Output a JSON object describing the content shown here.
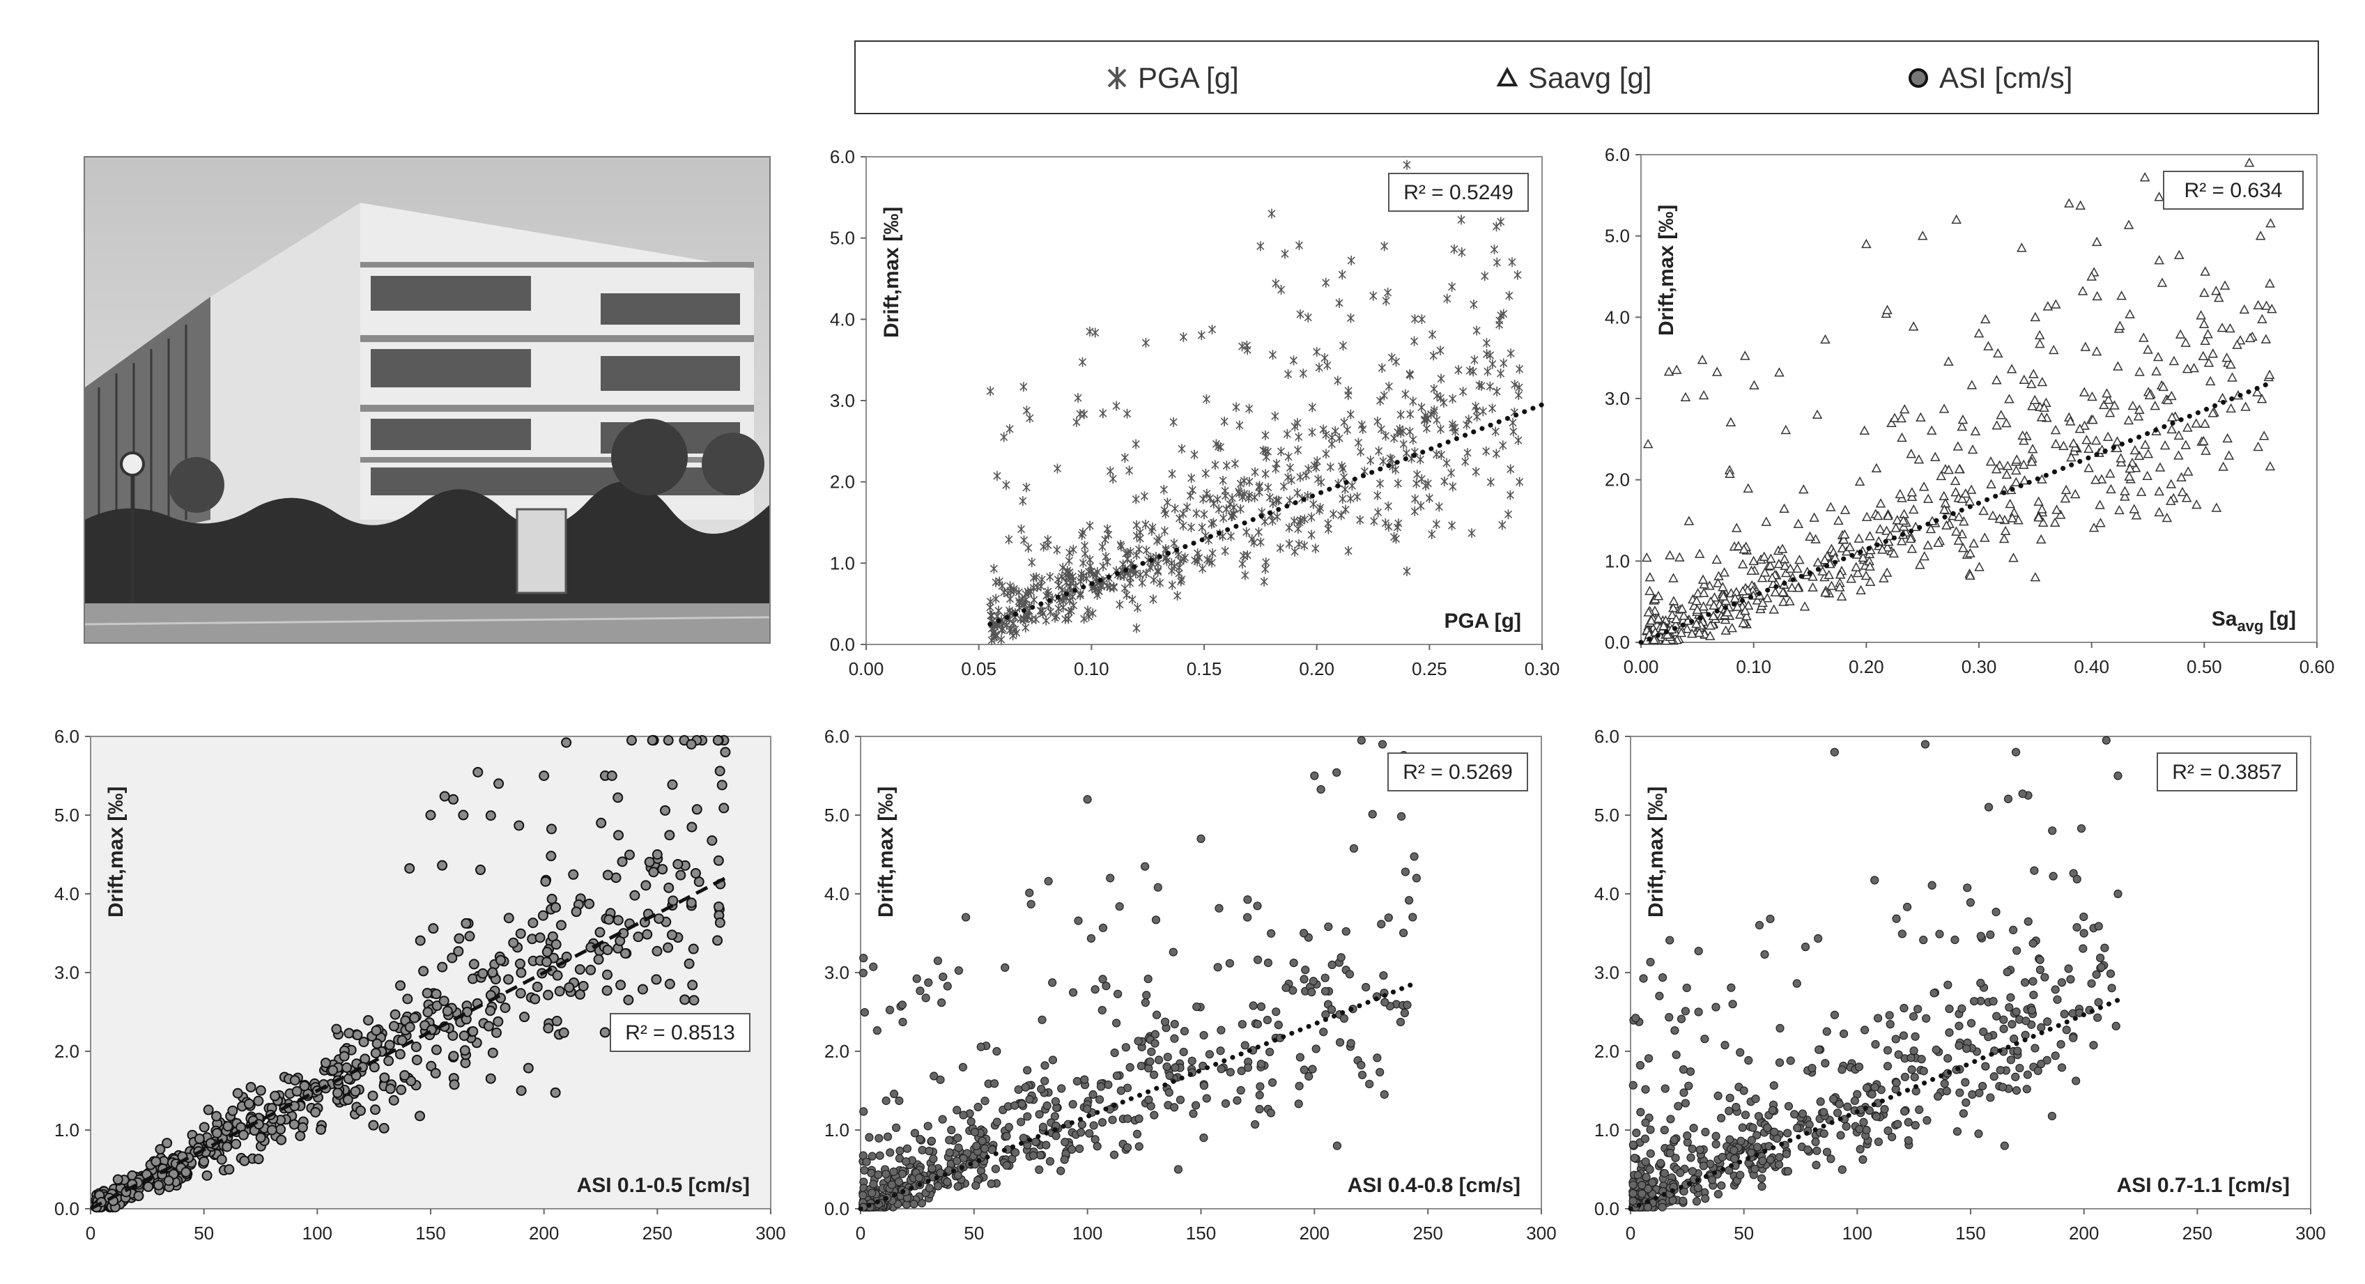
{
  "legend": {
    "items": [
      {
        "symbol": "star",
        "label": "PGA [g]"
      },
      {
        "symbol": "triangle",
        "label": "Saavg [g]"
      },
      {
        "symbol": "circle",
        "label": "ASI [cm/s]"
      }
    ]
  },
  "photo": {
    "subject": "building-photo"
  },
  "chart_data": [
    {
      "id": "pga",
      "type": "scatter",
      "marker": "star",
      "title": "",
      "ylabel": "Drift,max [‰]",
      "xlabel_in_plot": "PGA [g]",
      "xlim": [
        0,
        0.3
      ],
      "ylim": [
        0,
        6
      ],
      "xticks": [
        0,
        0.05,
        0.1,
        0.15,
        0.2,
        0.25,
        0.3
      ],
      "xtick_labels": [
        "0.00",
        "0.05",
        "0.10",
        "0.15",
        "0.20",
        "0.25",
        "0.30"
      ],
      "yticks": [
        0,
        1,
        2,
        3,
        4,
        5,
        6
      ],
      "ytick_labels": [
        "0.0",
        "1.0",
        "2.0",
        "3.0",
        "4.0",
        "5.0",
        "6.0"
      ],
      "r2_label": "R² = 0.5249",
      "r2_pos": "top-right",
      "trend": {
        "style": "dotted",
        "x": [
          0.055,
          0.3
        ],
        "y": [
          0.25,
          2.95
        ]
      },
      "background": "#ffffff",
      "n_points": 650,
      "seed": 11,
      "x_range": [
        0.055,
        0.29
      ],
      "points_sample": [
        [
          0.06,
          0.3
        ],
        [
          0.07,
          0.5
        ],
        [
          0.08,
          0.6
        ],
        [
          0.09,
          0.4
        ],
        [
          0.1,
          0.9
        ],
        [
          0.11,
          0.7
        ],
        [
          0.12,
          1.1
        ],
        [
          0.13,
          1.3
        ],
        [
          0.14,
          0.8
        ],
        [
          0.15,
          1.6
        ],
        [
          0.16,
          2.2
        ],
        [
          0.17,
          2.9
        ],
        [
          0.18,
          5.3
        ],
        [
          0.175,
          4.9
        ],
        [
          0.2,
          3.6
        ],
        [
          0.21,
          4.2
        ],
        [
          0.22,
          2.7
        ],
        [
          0.23,
          4.9
        ],
        [
          0.24,
          5.9
        ],
        [
          0.25,
          1.8
        ],
        [
          0.26,
          4.4
        ],
        [
          0.27,
          3.5
        ],
        [
          0.28,
          4.7
        ],
        [
          0.29,
          2.0
        ],
        [
          0.285,
          1.6
        ],
        [
          0.24,
          0.9
        ],
        [
          0.12,
          0.2
        ]
      ]
    },
    {
      "id": "saavg",
      "type": "scatter",
      "marker": "triangle",
      "title": "",
      "ylabel": "Drift,max [‰]",
      "xlabel_in_plot": "Sa",
      "xlabel_sub": "avg",
      "xlabel_unit": "[g]",
      "xlim": [
        0,
        0.6
      ],
      "ylim": [
        0,
        6
      ],
      "xticks": [
        0,
        0.1,
        0.2,
        0.3,
        0.4,
        0.5,
        0.6
      ],
      "xtick_labels": [
        "0.00",
        "0.10",
        "0.20",
        "0.30",
        "0.40",
        "0.50",
        "0.60"
      ],
      "yticks": [
        0,
        1,
        2,
        3,
        4,
        5,
        6
      ],
      "ytick_labels": [
        "0.0",
        "1.0",
        "2.0",
        "3.0",
        "4.0",
        "5.0",
        "6.0"
      ],
      "r2_label": "R² = 0.634",
      "r2_pos": "top-right",
      "trend": {
        "style": "dotted",
        "x": [
          0.0,
          0.56
        ],
        "y": [
          0.0,
          3.2
        ]
      },
      "background": "#ffffff",
      "n_points": 650,
      "seed": 23,
      "x_range": [
        0.005,
        0.56
      ],
      "points_sample": [
        [
          0.02,
          0.2
        ],
        [
          0.05,
          0.4
        ],
        [
          0.1,
          1.0
        ],
        [
          0.15,
          1.3
        ],
        [
          0.2,
          4.9
        ],
        [
          0.25,
          5.0
        ],
        [
          0.28,
          5.2
        ],
        [
          0.3,
          3.8
        ],
        [
          0.35,
          4.0
        ],
        [
          0.38,
          5.4
        ],
        [
          0.4,
          4.5
        ],
        [
          0.45,
          3.6
        ],
        [
          0.46,
          4.7
        ],
        [
          0.5,
          4.3
        ],
        [
          0.52,
          3.5
        ],
        [
          0.55,
          5.0
        ],
        [
          0.56,
          4.1
        ],
        [
          0.54,
          5.9
        ],
        [
          0.46,
          1.6
        ],
        [
          0.35,
          0.8
        ]
      ]
    },
    {
      "id": "asi-01-05",
      "type": "scatter",
      "marker": "circle",
      "title": "",
      "ylabel": "Drift,max [‰]",
      "xlabel_in_plot": "ASI 0.1-0.5  [cm/s]",
      "xlim": [
        0,
        300
      ],
      "ylim": [
        0,
        6
      ],
      "xticks": [
        0,
        50,
        100,
        150,
        200,
        250,
        300
      ],
      "xtick_labels": [
        "0",
        "50",
        "100",
        "150",
        "200",
        "250",
        "300"
      ],
      "yticks": [
        0,
        1,
        2,
        3,
        4,
        5,
        6
      ],
      "ytick_labels": [
        "0.0",
        "1.0",
        "2.0",
        "3.0",
        "4.0",
        "5.0",
        "6.0"
      ],
      "r2_label": "R² = 0.8513",
      "r2_pos": "mid-right",
      "trend": {
        "style": "dashed",
        "x": [
          0,
          280
        ],
        "y": [
          0.0,
          4.2
        ]
      },
      "background": "#f0f0f0",
      "n_points": 650,
      "seed": 37,
      "x_range": [
        2,
        280
      ],
      "points_sample": [
        [
          10,
          0.1
        ],
        [
          30,
          0.3
        ],
        [
          50,
          0.6
        ],
        [
          80,
          1.0
        ],
        [
          100,
          1.5
        ],
        [
          120,
          1.8
        ],
        [
          150,
          5.0
        ],
        [
          160,
          5.2
        ],
        [
          180,
          5.4
        ],
        [
          200,
          5.5
        ],
        [
          230,
          5.5
        ],
        [
          265,
          5.9
        ],
        [
          280,
          5.8
        ],
        [
          250,
          4.5
        ],
        [
          210,
          3.2
        ],
        [
          190,
          1.5
        ]
      ]
    },
    {
      "id": "asi-04-08",
      "type": "scatter",
      "marker": "dot",
      "title": "",
      "ylabel": "Drift,max [‰]",
      "xlabel_in_plot": "ASI 0.4-0.8  [cm/s]",
      "xlim": [
        0,
        300
      ],
      "ylim": [
        0,
        6
      ],
      "xticks": [
        0,
        50,
        100,
        150,
        200,
        250,
        300
      ],
      "xtick_labels": [
        "0",
        "50",
        "100",
        "150",
        "200",
        "250",
        "300"
      ],
      "yticks": [
        0,
        1,
        2,
        3,
        4,
        5,
        6
      ],
      "ytick_labels": [
        "0.0",
        "1.0",
        "2.0",
        "3.0",
        "4.0",
        "5.0",
        "6.0"
      ],
      "r2_label": "R² = 0.5269",
      "r2_pos": "top-right",
      "trend": {
        "style": "dotted",
        "x": [
          0,
          243
        ],
        "y": [
          0.0,
          2.85
        ]
      },
      "background": "#ffffff",
      "n_points": 650,
      "seed": 53,
      "x_range": [
        1,
        245
      ],
      "points_sample": [
        [
          5,
          0.2
        ],
        [
          20,
          0.6
        ],
        [
          40,
          1.0
        ],
        [
          60,
          2.0
        ],
        [
          80,
          2.4
        ],
        [
          100,
          5.2
        ],
        [
          110,
          4.2
        ],
        [
          150,
          4.7
        ],
        [
          200,
          5.5
        ],
        [
          230,
          5.9
        ],
        [
          245,
          4.2
        ],
        [
          140,
          0.5
        ],
        [
          210,
          0.8
        ]
      ]
    },
    {
      "id": "asi-07-11",
      "type": "scatter",
      "marker": "dot",
      "title": "",
      "ylabel": "Drift,max [‰]",
      "xlabel_in_plot": "ASI 0.7-1.1  [cm/s]",
      "xlim": [
        0,
        300
      ],
      "ylim": [
        0,
        6
      ],
      "xticks": [
        0,
        50,
        100,
        150,
        200,
        250,
        300
      ],
      "xtick_labels": [
        "0",
        "50",
        "100",
        "150",
        "200",
        "250",
        "300"
      ],
      "yticks": [
        0,
        1,
        2,
        3,
        4,
        5,
        6
      ],
      "ytick_labels": [
        "0.0",
        "1.0",
        "2.0",
        "3.0",
        "4.0",
        "5.0",
        "6.0"
      ],
      "r2_label": "R² = 0.3857",
      "r2_pos": "top-right",
      "trend": {
        "style": "dotted",
        "x": [
          0,
          215
        ],
        "y": [
          0.0,
          2.65
        ]
      },
      "background": "#ffffff",
      "n_points": 650,
      "seed": 71,
      "x_range": [
        1,
        215
      ],
      "points_sample": [
        [
          5,
          0.3
        ],
        [
          15,
          1.0
        ],
        [
          30,
          2.5
        ],
        [
          50,
          1.5
        ],
        [
          90,
          5.8
        ],
        [
          130,
          5.9
        ],
        [
          170,
          5.8
        ],
        [
          215,
          5.5
        ],
        [
          165,
          0.8
        ],
        [
          200,
          3.5
        ],
        [
          215,
          4.0
        ]
      ]
    }
  ]
}
